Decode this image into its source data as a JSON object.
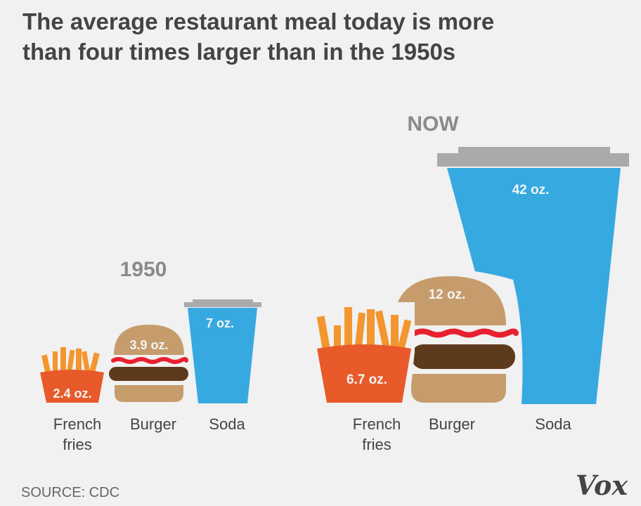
{
  "title_lines": [
    "The average restaurant meal today is more",
    "than four times larger than in the 1950s"
  ],
  "source": "SOURCE: CDC",
  "logo": "Vox",
  "colors": {
    "background": "#f0f1f0",
    "fries_carton": "#e85a2a",
    "fries": "#f3962f",
    "bun": "#c69c6d",
    "ketchup": "#e8202f",
    "patty": "#5e3a1d",
    "soda": "#36a9e1",
    "lid": "#aaaaaa"
  },
  "chart_data": {
    "type": "bar",
    "style": "pictorial",
    "unit": "oz.",
    "categories": [
      "French fries",
      "Burger",
      "Soda"
    ],
    "category_lines": [
      [
        "French",
        "fries"
      ],
      [
        "Burger"
      ],
      [
        "Soda"
      ]
    ],
    "series": [
      {
        "name": "1950",
        "values": [
          2.4,
          3.9,
          7
        ],
        "labels": [
          "2.4 oz.",
          "3.9 oz.",
          "7 oz."
        ]
      },
      {
        "name": "NOW",
        "values": [
          6.7,
          12,
          42
        ],
        "labels": [
          "6.7 oz.",
          "12 oz.",
          "42 oz."
        ]
      }
    ]
  }
}
